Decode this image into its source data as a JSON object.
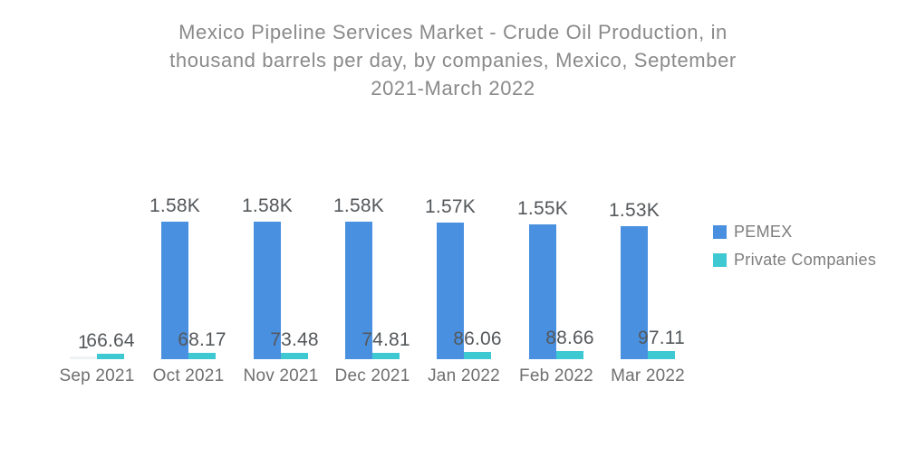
{
  "title": {
    "text": "Mexico Pipeline Services Market - Crude Oil Production, in\nthousand barrels per day, by companies, Mexico, September\n2021-March 2022"
  },
  "legend": {
    "position": "right",
    "items": [
      {
        "label": "PEMEX",
        "color": "#4a90e0"
      },
      {
        "label": "Private Companies",
        "color": "#3ec8d2"
      }
    ]
  },
  "chart_data": {
    "type": "bar",
    "title": "Mexico Pipeline Services Market - Crude Oil Production, in thousand barrels per day, by companies, Mexico, September 2021-March 2022",
    "unit": "thousand barrels per day",
    "categories": [
      "Sep 2021",
      "Oct 2021",
      "Nov 2021",
      "Dec 2021",
      "Jan 2022",
      "Feb 2022",
      "Mar 2022"
    ],
    "series": [
      {
        "name": "PEMEX",
        "color": "#4a90e0",
        "values": [
          null,
          1580,
          1580,
          1580,
          1570,
          1550,
          1530
        ],
        "labels": [
          "1",
          "1.58K",
          "1.58K",
          "1.58K",
          "1.57K",
          "1.55K",
          "1.53K"
        ],
        "faded_indices": [
          0
        ],
        "faded_color": "#eff1f3"
      },
      {
        "name": "Private Companies",
        "color": "#3ec8d2",
        "values": [
          66.64,
          68.17,
          73.48,
          74.81,
          86.06,
          88.66,
          97.11
        ],
        "labels": [
          "66.64",
          "68.17",
          "73.48",
          "74.81",
          "86.06",
          "88.66",
          "97.11"
        ]
      }
    ],
    "ylim": [
      0,
      1700
    ],
    "grid": false,
    "legend_position": "right"
  }
}
